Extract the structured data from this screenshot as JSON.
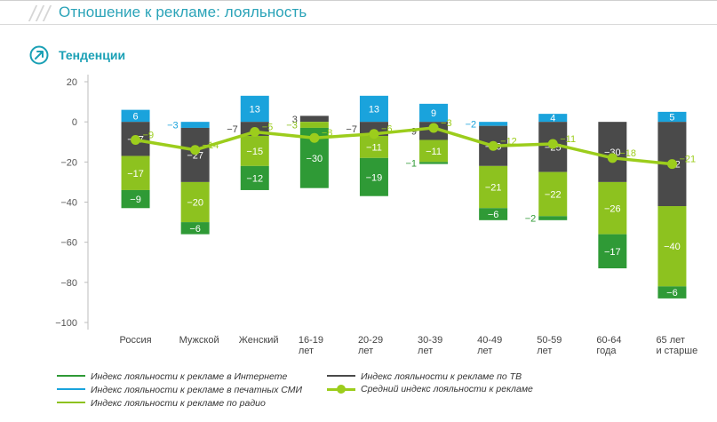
{
  "header": {
    "title": "Отношение к рекламе: лояльность",
    "section": "Тенденции"
  },
  "chart_data": {
    "type": "bar",
    "stacked": true,
    "categories": [
      "Россия",
      "Мужской",
      "Женский",
      "16-19 лет",
      "20-29 лет",
      "30-39 лет",
      "40-49 лет",
      "50-59 лет",
      "60-64 года",
      "65 лет и старше"
    ],
    "category_lines": [
      [
        "Россия"
      ],
      [
        "Мужской"
      ],
      [
        "Женский"
      ],
      [
        "16-19",
        "лет"
      ],
      [
        "20-29",
        "лет"
      ],
      [
        "30-39",
        "лет"
      ],
      [
        "40-49",
        "лет"
      ],
      [
        "50-59",
        "лет"
      ],
      [
        "60-64",
        "года"
      ],
      [
        "65 лет",
        "и старше"
      ]
    ],
    "ylim": [
      -100,
      20
    ],
    "yticks": [
      20,
      0,
      -20,
      -40,
      -60,
      -80,
      -100
    ],
    "ytick_labels": [
      "20",
      "0",
      "−20",
      "−40",
      "−60",
      "−80",
      "−100"
    ],
    "grid": false,
    "legend_position": "bottom",
    "series": [
      {
        "name": "Индекс лояльности к рекламе по ТВ",
        "color": "#4a4a4a",
        "values": [
          -17,
          -27,
          -7,
          3,
          -7,
          -9,
          -20,
          -25,
          -30,
          -42
        ]
      },
      {
        "name": "Индекс лояльности к рекламе в печатных СМИ",
        "color": "#1aa3dc",
        "values": [
          6,
          -3,
          13,
          null,
          13,
          9,
          -2,
          4,
          null,
          5
        ]
      },
      {
        "name": "Индекс лояльности к рекламе по радио",
        "color": "#8dc21f",
        "values": [
          -17,
          -20,
          -15,
          -3,
          -11,
          -11,
          -21,
          -22,
          -26,
          -40
        ]
      },
      {
        "name": "Индекс лояльности к рекламе в Интернете",
        "color": "#2f9a36",
        "values": [
          -9,
          -6,
          -12,
          -30,
          -19,
          -1,
          -6,
          -2,
          -17,
          -6
        ]
      },
      {
        "name": "Средний индекс лояльности к рекламе",
        "color": "#9ccd1c",
        "type": "line",
        "values": [
          -9,
          -14,
          -5,
          -8,
          -6,
          -3,
          -12,
          -11,
          -18,
          -21
        ]
      }
    ],
    "bar_labels": [
      [
        {
          "s": 1,
          "t": "6"
        },
        {
          "s": 0,
          "t": "−17"
        },
        {
          "s": 2,
          "t": "−17"
        },
        {
          "s": 3,
          "t": "−9"
        }
      ],
      [
        {
          "s": 0,
          "t": "−27"
        },
        {
          "s": 2,
          "t": "−20"
        },
        {
          "s": 1,
          "t": "−3",
          "out": true
        },
        {
          "s": 3,
          "t": "−6"
        }
      ],
      [
        {
          "s": 1,
          "t": "13"
        },
        {
          "s": 0,
          "t": "−7",
          "out": true
        },
        {
          "s": 2,
          "t": "−15"
        },
        {
          "s": 3,
          "t": "−12"
        }
      ],
      [
        {
          "s": 0,
          "t": "3",
          "out": true
        },
        {
          "s": 2,
          "t": "−3",
          "out": true
        },
        {
          "s": 3,
          "t": "−30"
        }
      ],
      [
        {
          "s": 1,
          "t": "13"
        },
        {
          "s": 0,
          "t": "−7",
          "out": true
        },
        {
          "s": 2,
          "t": "−11"
        },
        {
          "s": 3,
          "t": "−19"
        }
      ],
      [
        {
          "s": 1,
          "t": "9"
        },
        {
          "s": 0,
          "t": "−9",
          "out": true
        },
        {
          "s": 2,
          "t": "−11"
        },
        {
          "s": 3,
          "t": "−1",
          "out": true
        }
      ],
      [
        {
          "s": 0,
          "t": "−20"
        },
        {
          "s": 2,
          "t": "−21"
        },
        {
          "s": 1,
          "t": "−2",
          "out": true
        },
        {
          "s": 3,
          "t": "−6"
        }
      ],
      [
        {
          "s": 1,
          "t": "4"
        },
        {
          "s": 0,
          "t": "−25"
        },
        {
          "s": 2,
          "t": "−22"
        },
        {
          "s": 3,
          "t": "−2",
          "out": true
        }
      ],
      [
        {
          "s": 0,
          "t": "−30"
        },
        {
          "s": 2,
          "t": "−26"
        },
        {
          "s": 3,
          "t": "−17"
        }
      ],
      [
        {
          "s": 1,
          "t": "5"
        },
        {
          "s": 0,
          "t": "−42"
        },
        {
          "s": 2,
          "t": "−40"
        },
        {
          "s": 3,
          "t": "−6"
        }
      ]
    ],
    "avg_labels": [
      "−9",
      "−14",
      "−5",
      "−8",
      "−6",
      "−3",
      "−12",
      "−11",
      "−18",
      "−21"
    ]
  },
  "legend": {
    "internet": "Индекс лояльности к рекламе в Интернете",
    "press": "Индекс лояльности к рекламе в печатных СМИ",
    "radio": "Индекс лояльности к рекламе по радио",
    "tv": "Индекс лояльности к рекламе по ТВ",
    "average": "Средний индекс лояльности к рекламе"
  }
}
